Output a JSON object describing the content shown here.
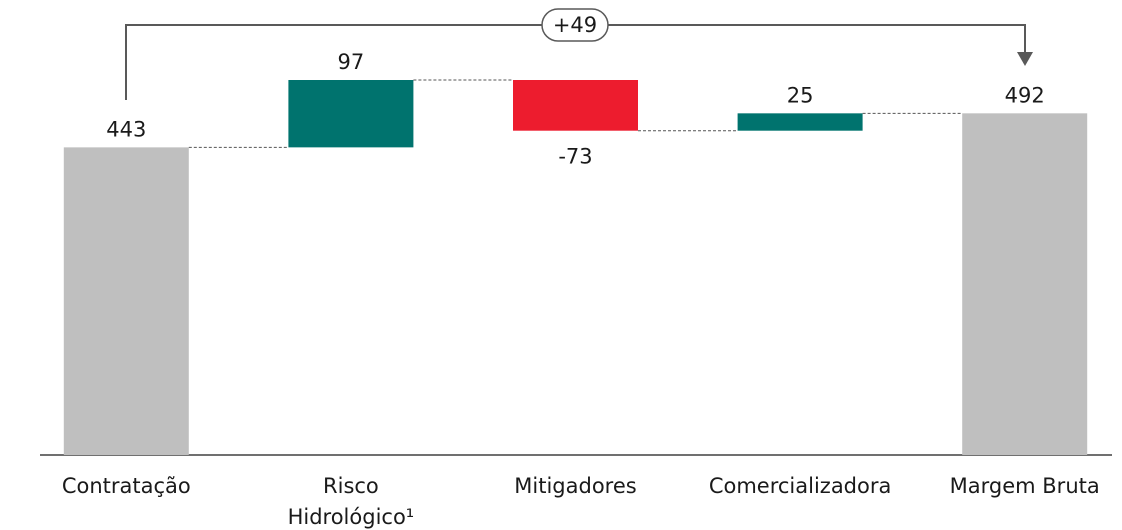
{
  "chart_data": {
    "type": "waterfall",
    "categories": [
      "Contratação",
      "Risco\nHidrológico¹",
      "Mitigadores",
      "Comercializadora",
      "Margem Bruta"
    ],
    "values": [
      443,
      97,
      -73,
      25,
      492
    ],
    "is_total": [
      true,
      false,
      false,
      false,
      true
    ],
    "colors": {
      "total": "#bfbfbf",
      "increase": "#00736e",
      "decrease": "#ed1c2e"
    },
    "annotation": "+49"
  }
}
